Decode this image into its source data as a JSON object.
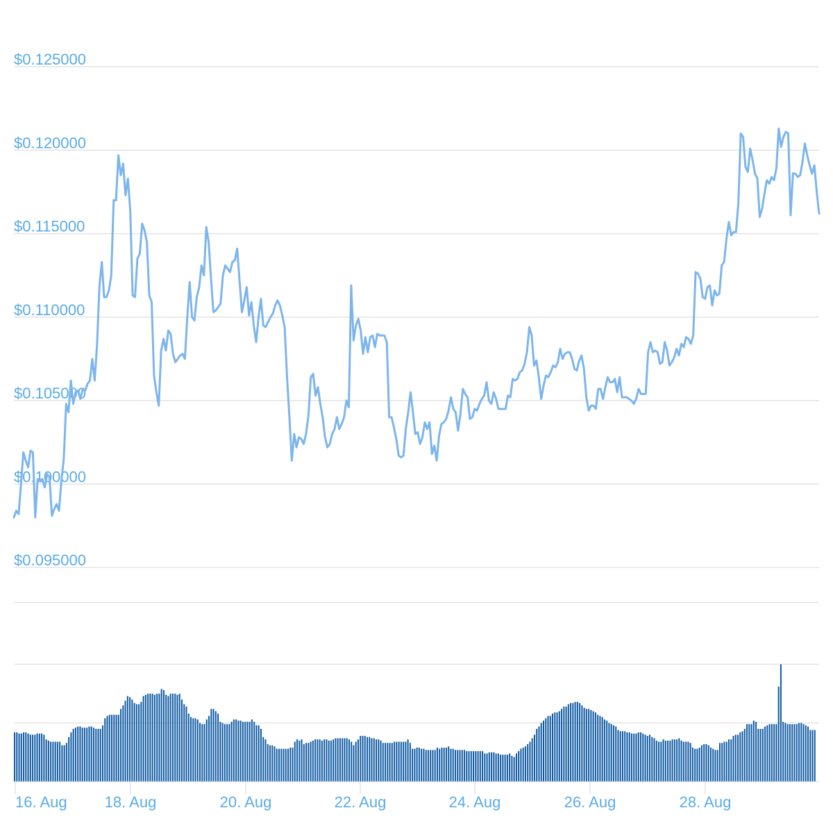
{
  "chart_data": [
    {
      "type": "line",
      "title": "",
      "xlabel": "",
      "ylabel": "",
      "y_ticks": [
        "$0.125000",
        "$0.120000",
        "$0.115000",
        "$0.110000",
        "$0.105000",
        "$0.100000",
        "$0.095000"
      ],
      "y_tick_values": [
        0.125,
        0.12,
        0.115,
        0.11,
        0.105,
        0.1,
        0.095
      ],
      "ylim": [
        0.0929,
        0.129
      ],
      "x_range_days": [
        "2025-08-16",
        "2025-08-30"
      ],
      "grid": true,
      "line_color": "#7cb5ec",
      "series": [
        {
          "name": "",
          "values": [
            0.098,
            0.0984,
            0.0982,
            0.1,
            0.1019,
            0.1014,
            0.101,
            0.102,
            0.1019,
            0.098,
            0.1003,
            0.1002,
            0.1003,
            0.0998,
            0.1006,
            0.1004,
            0.0981,
            0.0985,
            0.0988,
            0.0984,
            0.1002,
            0.1015,
            0.1048,
            0.1043,
            0.1062,
            0.1048,
            0.1055,
            0.1056,
            0.1051,
            0.1057,
            0.1056,
            0.106,
            0.1062,
            0.1075,
            0.1062,
            0.1083,
            0.1118,
            0.1133,
            0.1112,
            0.1112,
            0.1116,
            0.1125,
            0.117,
            0.117,
            0.1197,
            0.1185,
            0.1192,
            0.1173,
            0.1183,
            0.1164,
            0.1113,
            0.1112,
            0.1135,
            0.1138,
            0.1156,
            0.1152,
            0.1145,
            0.1113,
            0.1109,
            0.1065,
            0.1055,
            0.1047,
            0.108,
            0.1087,
            0.108,
            0.1092,
            0.109,
            0.1078,
            0.1073,
            0.1075,
            0.1077,
            0.1078,
            0.1075,
            0.11,
            0.1121,
            0.11,
            0.1098,
            0.1112,
            0.1118,
            0.1131,
            0.1125,
            0.1154,
            0.1145,
            0.1123,
            0.1103,
            0.1104,
            0.1106,
            0.1108,
            0.1125,
            0.1131,
            0.1129,
            0.1127,
            0.1133,
            0.1134,
            0.1141,
            0.1122,
            0.1103,
            0.111,
            0.1118,
            0.1101,
            0.1109,
            0.1095,
            0.1085,
            0.11,
            0.1111,
            0.1095,
            0.1094,
            0.1097,
            0.11,
            0.1102,
            0.1107,
            0.111,
            0.1107,
            0.1101,
            0.1094,
            0.1064,
            0.104,
            0.1014,
            0.103,
            0.1022,
            0.1028,
            0.1027,
            0.1024,
            0.103,
            0.1041,
            0.1064,
            0.1066,
            0.1053,
            0.1058,
            0.1048,
            0.104,
            0.1028,
            0.1022,
            0.1024,
            0.103,
            0.1033,
            0.104,
            0.1033,
            0.1036,
            0.104,
            0.105,
            0.1046,
            0.1119,
            0.1086,
            0.1095,
            0.1099,
            0.1092,
            0.1078,
            0.1088,
            0.1079,
            0.1088,
            0.1089,
            0.1082,
            0.109,
            0.1089,
            0.1089,
            0.1089,
            0.1085,
            0.104,
            0.104,
            0.1034,
            0.1027,
            0.1017,
            0.1016,
            0.1017,
            0.1033,
            0.1043,
            0.1055,
            0.1043,
            0.103,
            0.1031,
            0.1024,
            0.1028,
            0.1037,
            0.1033,
            0.1037,
            0.1018,
            0.1023,
            0.1014,
            0.1029,
            0.1036,
            0.1037,
            0.1039,
            0.1044,
            0.1052,
            0.1045,
            0.1043,
            0.1032,
            0.1042,
            0.1057,
            0.1054,
            0.1052,
            0.1039,
            0.104,
            0.1045,
            0.1044,
            0.1048,
            0.1051,
            0.1053,
            0.1061,
            0.105,
            0.1048,
            0.1055,
            0.1051,
            0.1045,
            0.1045,
            0.1045,
            0.1045,
            0.1053,
            0.1052,
            0.1063,
            0.1062,
            0.1063,
            0.1067,
            0.1068,
            0.1072,
            0.1079,
            0.1094,
            0.1089,
            0.1071,
            0.1074,
            0.1064,
            0.1051,
            0.1059,
            0.1065,
            0.1064,
            0.1067,
            0.1071,
            0.107,
            0.1073,
            0.1081,
            0.1075,
            0.1078,
            0.1079,
            0.1079,
            0.1075,
            0.1069,
            0.1068,
            0.1074,
            0.1077,
            0.1069,
            0.1052,
            0.1044,
            0.1047,
            0.1047,
            0.1045,
            0.1057,
            0.1057,
            0.1051,
            0.1058,
            0.1064,
            0.1061,
            0.1061,
            0.1063,
            0.1055,
            0.1064,
            0.1052,
            0.1052,
            0.1052,
            0.1051,
            0.105,
            0.1048,
            0.1051,
            0.1057,
            0.1054,
            0.1054,
            0.1054,
            0.1079,
            0.1085,
            0.1079,
            0.108,
            0.1079,
            0.1072,
            0.1073,
            0.1085,
            0.108,
            0.1071,
            0.1073,
            0.1076,
            0.1081,
            0.1077,
            0.1084,
            0.1082,
            0.1088,
            0.1087,
            0.1084,
            0.1089,
            0.1127,
            0.1126,
            0.1123,
            0.1112,
            0.1111,
            0.1118,
            0.1119,
            0.1107,
            0.1116,
            0.1113,
            0.1114,
            0.1131,
            0.1133,
            0.1147,
            0.1157,
            0.1149,
            0.1151,
            0.1151,
            0.1168,
            0.121,
            0.1208,
            0.119,
            0.1187,
            0.1201,
            0.1194,
            0.1186,
            0.1183,
            0.116,
            0.1165,
            0.1174,
            0.1182,
            0.118,
            0.1184,
            0.1182,
            0.1189,
            0.1213,
            0.1202,
            0.1208,
            0.1211,
            0.121,
            0.1161,
            0.1186,
            0.1186,
            0.1184,
            0.1185,
            0.1193,
            0.1204,
            0.1197,
            0.1191,
            0.1186,
            0.1191,
            0.1175,
            0.1162
          ]
        }
      ]
    },
    {
      "type": "bar",
      "title": "",
      "xlabel": "",
      "ylabel": "",
      "ylim": [
        0,
        100
      ],
      "bar_color": "#0f5aa3",
      "x_ticks": [
        "16. Aug",
        "18. Aug",
        "20. Aug",
        "22. Aug",
        "24. Aug",
        "26. Aug",
        "28. Aug"
      ],
      "series": [
        {
          "name": "",
          "values": [
            42,
            42,
            41,
            41,
            42,
            42,
            41,
            40,
            40,
            40,
            41,
            41,
            41,
            40,
            36,
            35,
            34,
            34,
            34,
            34,
            34,
            31,
            31,
            33,
            38,
            42,
            45,
            46,
            47,
            47,
            46,
            46,
            46,
            47,
            47,
            46,
            45,
            45,
            45,
            48,
            54,
            56,
            57,
            57,
            57,
            57,
            57,
            62,
            65,
            69,
            73,
            72,
            70,
            67,
            66,
            66,
            68,
            73,
            74,
            75,
            75,
            75,
            74,
            75,
            75,
            79,
            78,
            74,
            73,
            75,
            75,
            75,
            74,
            75,
            70,
            66,
            64,
            58,
            55,
            54,
            54,
            53,
            50,
            49,
            49,
            53,
            56,
            62,
            62,
            60,
            58,
            51,
            50,
            49,
            49,
            49,
            51,
            53,
            53,
            52,
            52,
            51,
            51,
            51,
            51,
            53,
            51,
            48,
            48,
            45,
            38,
            36,
            32,
            31,
            31,
            30,
            28,
            28,
            28,
            28,
            28,
            28,
            29,
            29,
            34,
            36,
            35,
            36,
            32,
            33,
            33,
            34,
            35,
            36,
            36,
            36,
            35,
            36,
            36,
            35,
            35,
            36,
            37,
            37,
            37,
            37,
            37,
            37,
            36,
            34,
            31,
            34,
            36,
            39,
            39,
            39,
            38,
            38,
            37,
            37,
            36,
            36,
            35,
            33,
            33,
            33,
            33,
            33,
            34,
            34,
            34,
            34,
            34,
            34,
            36,
            33,
            28,
            28,
            29,
            29,
            28,
            28,
            27,
            27,
            27,
            27,
            27,
            29,
            28,
            29,
            29,
            29,
            30,
            28,
            28,
            27,
            27,
            27,
            27,
            27,
            26,
            26,
            26,
            26,
            26,
            26,
            26,
            26,
            24,
            24,
            25,
            25,
            25,
            24,
            24,
            23,
            23,
            23,
            23,
            24,
            22,
            21,
            24,
            26,
            28,
            29,
            30,
            32,
            34,
            37,
            40,
            45,
            47,
            50,
            52,
            54,
            56,
            56,
            58,
            59,
            59,
            60,
            62,
            64,
            64,
            66,
            67,
            67,
            68,
            68,
            67,
            65,
            63,
            62,
            62,
            61,
            60,
            59,
            57,
            56,
            55,
            53,
            52,
            50,
            49,
            48,
            47,
            44,
            43,
            43,
            43,
            42,
            42,
            41,
            41,
            41,
            42,
            42,
            41,
            40,
            39,
            40,
            38,
            37,
            35,
            34,
            34,
            36,
            35,
            35,
            35,
            36,
            36,
            36,
            37,
            35,
            34,
            34,
            34,
            33,
            29,
            28,
            28,
            29,
            31,
            32,
            32,
            31,
            29,
            28,
            27,
            27,
            33,
            33,
            34,
            34,
            36,
            36,
            39,
            40,
            40,
            42,
            43,
            45,
            49,
            49,
            49,
            52,
            51,
            45,
            45,
            45,
            47,
            48,
            49,
            49,
            49,
            49,
            81,
            102,
            51,
            50,
            49,
            49,
            49,
            49,
            49,
            50,
            50,
            49,
            48,
            47,
            44,
            44,
            44
          ]
        }
      ]
    }
  ]
}
